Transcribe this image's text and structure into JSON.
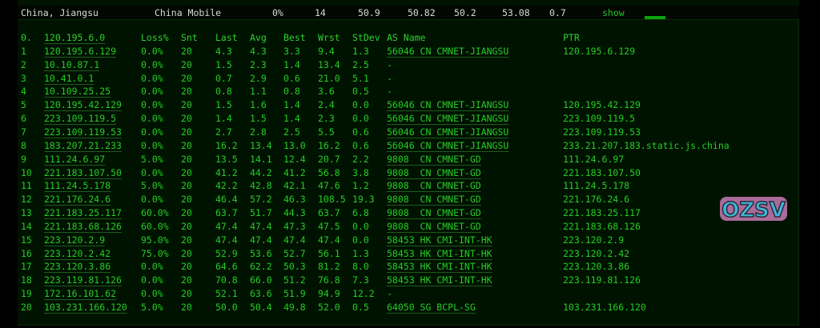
{
  "summary": {
    "location": "China, Jiangsu",
    "isp": "China Mobile",
    "loss": "0%",
    "snt": "14",
    "last": "50.9",
    "avg": "50.82",
    "best": "50.2",
    "worst": "53.08",
    "stdev": "0.7",
    "show_label": "show",
    "accent": "#0aa30a"
  },
  "headers": {
    "idx": "0.",
    "host": "120.195.6.0",
    "loss": "Loss%",
    "snt": "Snt",
    "last": "Last",
    "avg": "Avg",
    "best": "Best",
    "wrst": "Wrst",
    "stdev": "StDev",
    "as": "AS Name",
    "ptr": "PTR"
  },
  "hops": [
    {
      "idx": "1",
      "host": "120.195.6.129",
      "loss": "0.0%",
      "snt": "20",
      "last": "4.3",
      "avg": "4.3",
      "best": "3.3",
      "wrst": "9.4",
      "stdev": "1.3",
      "as": "56046 CN CMNET-JIANGSU",
      "ptr": "120.195.6.129"
    },
    {
      "idx": "2",
      "host": "10.10.87.1",
      "loss": "0.0%",
      "snt": "20",
      "last": "1.5",
      "avg": "2.3",
      "best": "1.4",
      "wrst": "13.4",
      "stdev": "2.5",
      "as": "-",
      "ptr": ""
    },
    {
      "idx": "3",
      "host": "10.41.0.1",
      "loss": "0.0%",
      "snt": "20",
      "last": "0.7",
      "avg": "2.9",
      "best": "0.6",
      "wrst": "21.0",
      "stdev": "5.1",
      "as": "-",
      "ptr": ""
    },
    {
      "idx": "4",
      "host": "10.109.25.25",
      "loss": "0.0%",
      "snt": "20",
      "last": "0.8",
      "avg": "1.1",
      "best": "0.8",
      "wrst": "3.6",
      "stdev": "0.5",
      "as": "-",
      "ptr": ""
    },
    {
      "idx": "5",
      "host": "120.195.42.129",
      "loss": "0.0%",
      "snt": "20",
      "last": "1.5",
      "avg": "1.6",
      "best": "1.4",
      "wrst": "2.4",
      "stdev": "0.0",
      "as": "56046 CN CMNET-JIANGSU",
      "ptr": "120.195.42.129"
    },
    {
      "idx": "6",
      "host": "223.109.119.5",
      "loss": "0.0%",
      "snt": "20",
      "last": "1.4",
      "avg": "1.5",
      "best": "1.4",
      "wrst": "2.3",
      "stdev": "0.0",
      "as": "56046 CN CMNET-JIANGSU",
      "ptr": "223.109.119.5"
    },
    {
      "idx": "7",
      "host": "223.109.119.53",
      "loss": "0.0%",
      "snt": "20",
      "last": "2.7",
      "avg": "2.8",
      "best": "2.5",
      "wrst": "5.5",
      "stdev": "0.6",
      "as": "56046 CN CMNET-JIANGSU",
      "ptr": "223.109.119.53"
    },
    {
      "idx": "8",
      "host": "183.207.21.233",
      "loss": "0.0%",
      "snt": "20",
      "last": "16.2",
      "avg": "13.4",
      "best": "13.0",
      "wrst": "16.2",
      "stdev": "0.6",
      "as": "56046 CN CMNET-JIANGSU",
      "ptr": "233.21.207.183.static.js.china"
    },
    {
      "idx": "9",
      "host": "111.24.6.97",
      "loss": "5.0%",
      "snt": "20",
      "last": "13.5",
      "avg": "14.1",
      "best": "12.4",
      "wrst": "20.7",
      "stdev": "2.2",
      "as": "9808  CN CMNET-GD",
      "ptr": "111.24.6.97"
    },
    {
      "idx": "10",
      "host": "221.183.107.50",
      "loss": "0.0%",
      "snt": "20",
      "last": "41.2",
      "avg": "44.2",
      "best": "41.2",
      "wrst": "56.8",
      "stdev": "3.8",
      "as": "9808  CN CMNET-GD",
      "ptr": "221.183.107.50"
    },
    {
      "idx": "11",
      "host": "111.24.5.178",
      "loss": "5.0%",
      "snt": "20",
      "last": "42.2",
      "avg": "42.8",
      "best": "42.1",
      "wrst": "47.6",
      "stdev": "1.2",
      "as": "9808  CN CMNET-GD",
      "ptr": "111.24.5.178"
    },
    {
      "idx": "12",
      "host": "221.176.24.6",
      "loss": "0.0%",
      "snt": "20",
      "last": "46.4",
      "avg": "57.2",
      "best": "46.3",
      "wrst": "108.5",
      "stdev": "19.3",
      "as": "9808  CN CMNET-GD",
      "ptr": "221.176.24.6"
    },
    {
      "idx": "13",
      "host": "221.183.25.117",
      "loss": "60.0%",
      "snt": "20",
      "last": "63.7",
      "avg": "51.7",
      "best": "44.3",
      "wrst": "63.7",
      "stdev": "6.8",
      "as": "9808  CN CMNET-GD",
      "ptr": "221.183.25.117"
    },
    {
      "idx": "14",
      "host": "221.183.68.126",
      "loss": "60.0%",
      "snt": "20",
      "last": "47.4",
      "avg": "47.4",
      "best": "47.3",
      "wrst": "47.5",
      "stdev": "0.0",
      "as": "9808  CN CMNET-GD",
      "ptr": "221.183.68.126"
    },
    {
      "idx": "15",
      "host": "223.120.2.9",
      "loss": "95.0%",
      "snt": "20",
      "last": "47.4",
      "avg": "47.4",
      "best": "47.4",
      "wrst": "47.4",
      "stdev": "0.0",
      "as": "58453 HK CMI-INT-HK",
      "ptr": "223.120.2.9"
    },
    {
      "idx": "16",
      "host": "223.120.2.42",
      "loss": "75.0%",
      "snt": "20",
      "last": "52.9",
      "avg": "53.6",
      "best": "52.7",
      "wrst": "56.1",
      "stdev": "1.3",
      "as": "58453 HK CMI-INT-HK",
      "ptr": "223.120.2.42"
    },
    {
      "idx": "17",
      "host": "223.120.3.86",
      "loss": "0.0%",
      "snt": "20",
      "last": "64.6",
      "avg": "62.2",
      "best": "50.3",
      "wrst": "81.2",
      "stdev": "8.0",
      "as": "58453 HK CMI-INT-HK",
      "ptr": "223.120.3.86"
    },
    {
      "idx": "18",
      "host": "223.119.81.126",
      "loss": "0.0%",
      "snt": "20",
      "last": "70.8",
      "avg": "66.0",
      "best": "51.2",
      "wrst": "76.8",
      "stdev": "7.3",
      "as": "58453 HK CMI-INT-HK",
      "ptr": "223.119.81.126"
    },
    {
      "idx": "19",
      "host": "172.16.101.62",
      "loss": "0.0%",
      "snt": "20",
      "last": "52.1",
      "avg": "63.6",
      "best": "51.9",
      "wrst": "94.9",
      "stdev": "12.2",
      "as": "-",
      "ptr": ""
    },
    {
      "idx": "20",
      "host": "103.231.166.120",
      "loss": "5.0%",
      "snt": "20",
      "last": "50.0",
      "avg": "50.4",
      "best": "49.8",
      "wrst": "52.0",
      "stdev": "0.5",
      "as": "64050 SG BCPL-SG",
      "ptr": "103.231.166.120"
    }
  ],
  "watermark": {
    "text": "OZSV"
  }
}
